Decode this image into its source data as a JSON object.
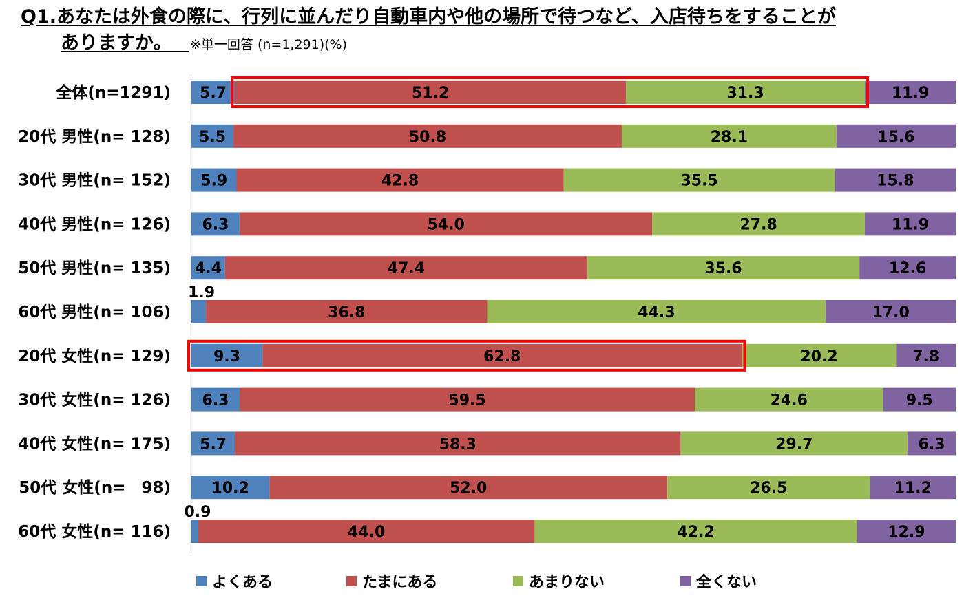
{
  "title_line1": "Q1.あなたは外食の際に、行列に並んだり自動車内や他の場所で待つなど、入店待ちをすることが",
  "title_line2": "ありますか。",
  "note": "※単一回答 (n=1,291)(%)",
  "colors": {
    "series": [
      "#4F81BD",
      "#C0504D",
      "#9BBB59",
      "#8064A2"
    ],
    "highlight": "#FF0000"
  },
  "chart_data": {
    "type": "bar",
    "orientation": "horizontal",
    "stacked": true,
    "percent_stacked": true,
    "categories": [
      "全体(n=1291)",
      "20代 男性(n= 128)",
      "30代 男性(n= 152)",
      "40代 男性(n= 126)",
      "50代 男性(n= 135)",
      "60代 男性(n= 106)",
      "20代 女性(n= 129)",
      "30代 女性(n= 126)",
      "40代 女性(n= 175)",
      "50代 女性(n=　98)",
      "60代 女性(n= 116)"
    ],
    "series": [
      {
        "name": "よくある",
        "values": [
          5.7,
          5.5,
          5.9,
          6.3,
          4.4,
          1.9,
          9.3,
          6.3,
          5.7,
          10.2,
          0.9
        ]
      },
      {
        "name": "たまにある",
        "values": [
          51.2,
          50.8,
          42.8,
          54.0,
          47.4,
          36.8,
          62.8,
          59.5,
          58.3,
          52.0,
          44.0
        ]
      },
      {
        "name": "あまりない",
        "values": [
          31.3,
          28.1,
          35.5,
          27.8,
          35.6,
          44.3,
          20.2,
          24.6,
          29.7,
          26.5,
          42.2
        ]
      },
      {
        "name": "全くない",
        "values": [
          11.9,
          15.6,
          15.8,
          11.9,
          12.6,
          17.0,
          7.8,
          9.5,
          6.3,
          11.2,
          12.9
        ]
      }
    ],
    "value_labels": [
      [
        "5.7",
        "51.2",
        "31.3",
        "11.9"
      ],
      [
        "5.5",
        "50.8",
        "28.1",
        "15.6"
      ],
      [
        "5.9",
        "42.8",
        "35.5",
        "15.8"
      ],
      [
        "6.3",
        "54.0",
        "27.8",
        "11.9"
      ],
      [
        "4.4",
        "47.4",
        "35.6",
        "12.6"
      ],
      [
        "1.9",
        "36.8",
        "44.3",
        "17.0"
      ],
      [
        "9.3",
        "62.8",
        "20.2",
        "7.8"
      ],
      [
        "6.3",
        "59.5",
        "24.6",
        "9.5"
      ],
      [
        "5.7",
        "58.3",
        "29.7",
        "6.3"
      ],
      [
        "10.2",
        "52.0",
        "26.5",
        "11.2"
      ],
      [
        "0.9",
        "44.0",
        "42.2",
        "12.9"
      ]
    ],
    "xlim": [
      0,
      100
    ],
    "legend_position": "bottom",
    "grid": false,
    "highlights": [
      {
        "row": 0,
        "series": [
          1,
          2
        ]
      },
      {
        "row": 6,
        "series": [
          0,
          1
        ]
      }
    ]
  }
}
